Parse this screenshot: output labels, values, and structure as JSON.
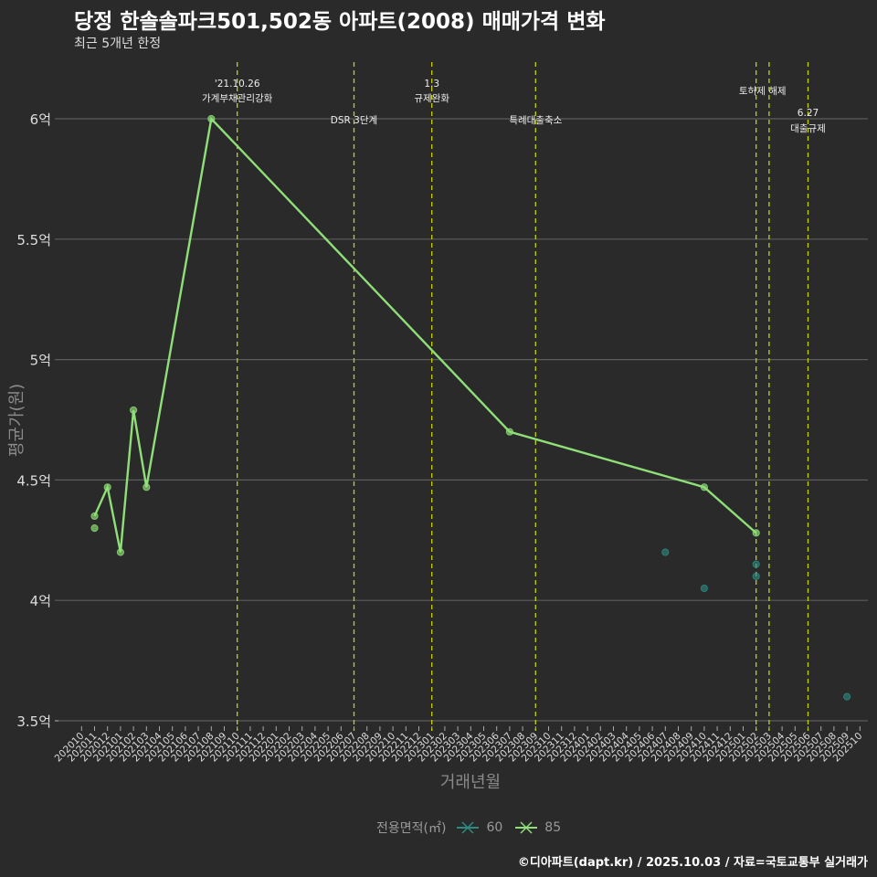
{
  "header": {
    "title": "당정 한솔솔파크501,502동 아파트(2008) 매매가격 변화",
    "subtitle": "최근 5개년 한정"
  },
  "footer": "©디아파트(dapt.kr) / 2025.10.03 / 자료=국토교통부 실거래가",
  "legend": {
    "title": "전용면적(㎡)",
    "items": [
      {
        "label": "60",
        "color": "#2c8c80"
      },
      {
        "label": "85",
        "color": "#8fdf78"
      }
    ]
  },
  "colors": {
    "background": "#2b2a2b",
    "grid": "#5c5c5c",
    "vline": "#c4d300"
  },
  "chart_data": {
    "type": "line",
    "title": "당정 한솔솔파크501,502동 아파트(2008) 매매가격 변화",
    "xlabel": "거래년월",
    "ylabel": "평균가(원)",
    "ylim": [
      3.5,
      6.0
    ],
    "yticks": [
      {
        "value": 3.5,
        "label": "3.5억"
      },
      {
        "value": 4,
        "label": "4억"
      },
      {
        "value": 4.5,
        "label": "4.5억"
      },
      {
        "value": 5,
        "label": "5억"
      },
      {
        "value": 5.5,
        "label": "5.5억"
      },
      {
        "value": 6,
        "label": "6억"
      }
    ],
    "x_tick_labels": [
      "202010",
      "202011",
      "202012",
      "202101",
      "202102",
      "202103",
      "202104",
      "202105",
      "202106",
      "202107",
      "202108",
      "202109",
      "202110",
      "202111",
      "202112",
      "202201",
      "202202",
      "202203",
      "202204",
      "202205",
      "202206",
      "202207",
      "202208",
      "202209",
      "202210",
      "202211",
      "202212",
      "202301",
      "202302",
      "202303",
      "202304",
      "202305",
      "202306",
      "202307",
      "202308",
      "202309",
      "202310",
      "202311",
      "202312",
      "202401",
      "202402",
      "202403",
      "202404",
      "202405",
      "202406",
      "202407",
      "202408",
      "202409",
      "202410",
      "202411",
      "202412",
      "202501",
      "202502",
      "202503",
      "202504",
      "202505",
      "202506",
      "202507",
      "202508",
      "202509",
      "202510"
    ],
    "series": [
      {
        "name": "85",
        "line": [
          [
            "202011",
            4.35
          ],
          [
            "202012",
            4.47
          ],
          [
            "202101",
            4.2
          ],
          [
            "202102",
            4.79
          ],
          [
            "202103",
            4.47
          ],
          [
            "202108",
            6.0
          ],
          [
            "202307",
            4.7
          ],
          [
            "202410",
            4.47
          ],
          [
            "202502",
            4.28
          ]
        ],
        "points": [
          [
            "202011",
            4.35
          ],
          [
            "202011",
            4.3
          ],
          [
            "202012",
            4.47
          ],
          [
            "202101",
            4.2
          ],
          [
            "202102",
            4.79
          ],
          [
            "202103",
            4.47
          ],
          [
            "202108",
            6.0
          ],
          [
            "202307",
            4.7
          ],
          [
            "202410",
            4.47
          ],
          [
            "202502",
            4.28
          ]
        ]
      },
      {
        "name": "60",
        "line": [],
        "points": [
          [
            "202407",
            4.2
          ],
          [
            "202410",
            4.05
          ],
          [
            "202502",
            4.15
          ],
          [
            "202502",
            4.1
          ],
          [
            "202509",
            3.6
          ]
        ]
      }
    ],
    "annotations": [
      {
        "month": "202110",
        "lines": [
          "'21.10.26",
          "가계부채관리강화"
        ]
      },
      {
        "month": "202207",
        "lines": [
          "DSR 3단계"
        ]
      },
      {
        "month": "202301",
        "lines": [
          "1.3",
          "규제완화"
        ]
      },
      {
        "month": "202309",
        "lines": [
          "특례대출축소"
        ]
      },
      {
        "month": "202502",
        "lines": [
          "토허제 해제"
        ]
      },
      {
        "month": "202503",
        "lines": []
      },
      {
        "month": "202506",
        "lines": [
          "6.27",
          "대출규제"
        ]
      }
    ]
  }
}
